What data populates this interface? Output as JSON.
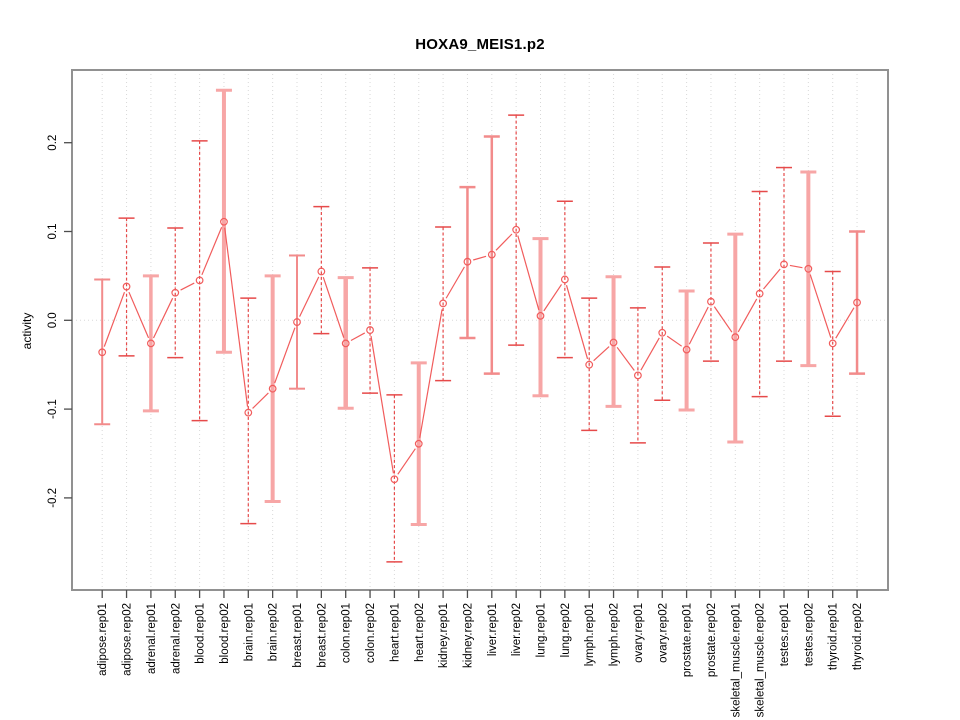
{
  "colors": {
    "series_line": "#f15c5c",
    "marker": "#f15c5c",
    "error_bar_dashed": "#e64a4a",
    "error_bar_solid": "#f7a6a6",
    "error_bar_solid_medium": "#f28b8b",
    "frame": "#919191",
    "grid": "#d8d8d8",
    "tick": "#4d4d4d",
    "text": "#000000"
  },
  "chart_data": {
    "type": "line",
    "title": "HOXA9_MEIS1.p2",
    "xlabel": "",
    "ylabel": "activity",
    "ylim": [
      -0.3,
      0.28
    ],
    "grid": "vertical dotted gridline per category; dotted horizontal line at y=0",
    "legend": "none",
    "marker": "open-circle",
    "error_bars": true,
    "ytick_labels": [
      "0.2",
      "0.1",
      "0.0",
      "-0.1",
      "-0.2"
    ],
    "ytick_values": [
      0.2,
      0.1,
      0.0,
      -0.1,
      -0.2
    ],
    "categories": [
      "adipose.rep01",
      "adipose.rep02",
      "adrenal.rep01",
      "adrenal.rep02",
      "blood.rep01",
      "blood.rep02",
      "brain.rep01",
      "brain.rep02",
      "breast.rep01",
      "breast.rep02",
      "colon.rep01",
      "colon.rep02",
      "heart.rep01",
      "heart.rep02",
      "kidney.rep01",
      "kidney.rep02",
      "liver.rep01",
      "liver.rep02",
      "lung.rep01",
      "lung.rep02",
      "lymph.rep01",
      "lymph.rep02",
      "ovary.rep01",
      "ovary.rep02",
      "prostate.rep01",
      "prostate.rep02",
      "skeletal_muscle.rep01",
      "skeletal_muscle.rep02",
      "testes.rep01",
      "testes.rep02",
      "thyroid.rep01",
      "thyroid.rep02"
    ],
    "values": [
      -0.036,
      0.038,
      -0.026,
      0.031,
      0.045,
      0.111,
      -0.104,
      -0.077,
      -0.002,
      0.055,
      -0.026,
      -0.011,
      -0.179,
      -0.139,
      0.019,
      0.066,
      0.074,
      0.102,
      0.005,
      0.046,
      -0.05,
      -0.025,
      -0.062,
      -0.014,
      -0.033,
      0.021,
      -0.019,
      0.03,
      0.063,
      0.058,
      -0.026,
      0.02
    ],
    "error_high": [
      0.046,
      0.115,
      0.05,
      0.104,
      0.202,
      0.259,
      0.025,
      0.05,
      0.073,
      0.128,
      0.048,
      0.059,
      -0.084,
      -0.048,
      0.105,
      0.15,
      0.207,
      0.231,
      0.092,
      0.134,
      0.025,
      0.049,
      0.014,
      0.06,
      0.033,
      0.087,
      0.097,
      0.145,
      0.172,
      0.167,
      0.055,
      0.1
    ],
    "error_low": [
      -0.117,
      -0.04,
      -0.102,
      -0.042,
      -0.113,
      -0.036,
      -0.229,
      -0.204,
      -0.077,
      -0.015,
      -0.099,
      -0.082,
      -0.272,
      -0.23,
      -0.068,
      -0.02,
      -0.06,
      -0.028,
      -0.085,
      -0.042,
      -0.124,
      -0.097,
      -0.138,
      -0.09,
      -0.101,
      -0.046,
      -0.137,
      -0.086,
      -0.046,
      -0.051,
      -0.108,
      -0.06
    ],
    "bar_dashed": [
      false,
      true,
      false,
      true,
      true,
      false,
      true,
      false,
      false,
      true,
      false,
      true,
      true,
      false,
      true,
      false,
      false,
      true,
      false,
      true,
      true,
      false,
      true,
      true,
      false,
      true,
      false,
      true,
      true,
      false,
      true,
      false
    ],
    "bar_lwd": [
      2,
      1.2,
      3.5,
      1.2,
      1.2,
      4,
      1.2,
      4,
      2,
      1.2,
      4.5,
      1.2,
      1.2,
      4,
      1.2,
      2.5,
      2.5,
      1.2,
      4,
      1.2,
      1.2,
      4,
      1.2,
      1.2,
      4,
      1.2,
      4,
      1.2,
      1.2,
      4,
      1.2,
      2.5
    ]
  }
}
